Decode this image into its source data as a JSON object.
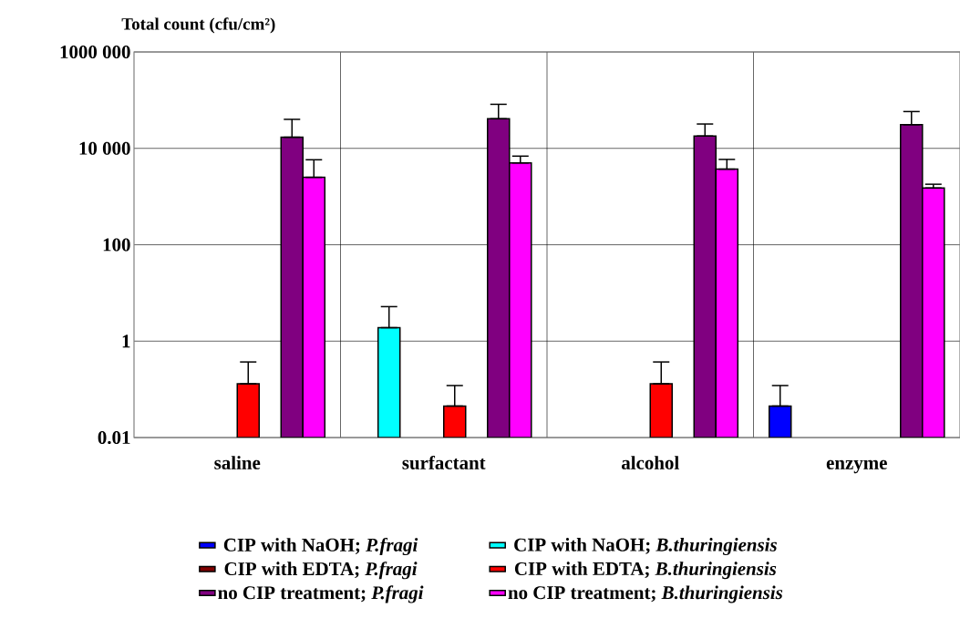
{
  "chart_data": {
    "type": "bar",
    "ylabel": "Total count (cfu/cm²)",
    "log": "y",
    "grid": true,
    "legend": "bottom",
    "categories": [
      "saline",
      "surfactant",
      "alcohol",
      "enzyme"
    ],
    "ylim": [
      0.01,
      1000000
    ],
    "yticks": [
      0.01,
      1,
      100,
      {
        "value": 10000,
        "label": "10 000"
      },
      {
        "value": 1000000,
        "label": "1000 000"
      }
    ],
    "series": [
      {
        "name": "CIP with NaOH; *P.fragi*",
        "color": "#0000ff",
        "values": [
          null,
          null,
          null,
          0.045
        ],
        "errors": [
          null,
          null,
          null,
          [
            0.045,
            0.12
          ]
        ]
      },
      {
        "name": "CIP with NaOH; *B.thuringiensis*",
        "color": "#00ffff",
        "values": [
          null,
          1.9,
          null,
          null
        ],
        "errors": [
          null,
          [
            1.9,
            5.2
          ],
          null,
          null
        ]
      },
      {
        "name": "CIP with EDTA; *P.fragi*",
        "color": "#800000",
        "values": [
          null,
          null,
          null,
          null
        ]
      },
      {
        "name": "CIP with EDTA; *B.thuringiensis*",
        "color": "#ff0000",
        "values": [
          0.13,
          0.045,
          0.13,
          null
        ],
        "errors": [
          [
            0.13,
            0.37
          ],
          [
            0.045,
            0.12
          ],
          [
            0.13,
            0.37
          ],
          null
        ]
      },
      {
        "name": "no CIP treatment; *P.fragi*",
        "color": "#800080",
        "values": [
          17000,
          41000,
          18000,
          31000
        ],
        "errors": [
          [
            17000,
            40000
          ],
          [
            41000,
            82000
          ],
          [
            18000,
            32000
          ],
          [
            31000,
            58000
          ]
        ]
      },
      {
        "name": "no CIP treatment; *B.thuringiensis*",
        "color": "#ff00ff",
        "values": [
          2500,
          5000,
          3700,
          1500
        ],
        "errors": [
          [
            2500,
            5800
          ],
          [
            5000,
            6900
          ],
          [
            3700,
            5900
          ],
          [
            1500,
            1800
          ]
        ]
      }
    ]
  }
}
